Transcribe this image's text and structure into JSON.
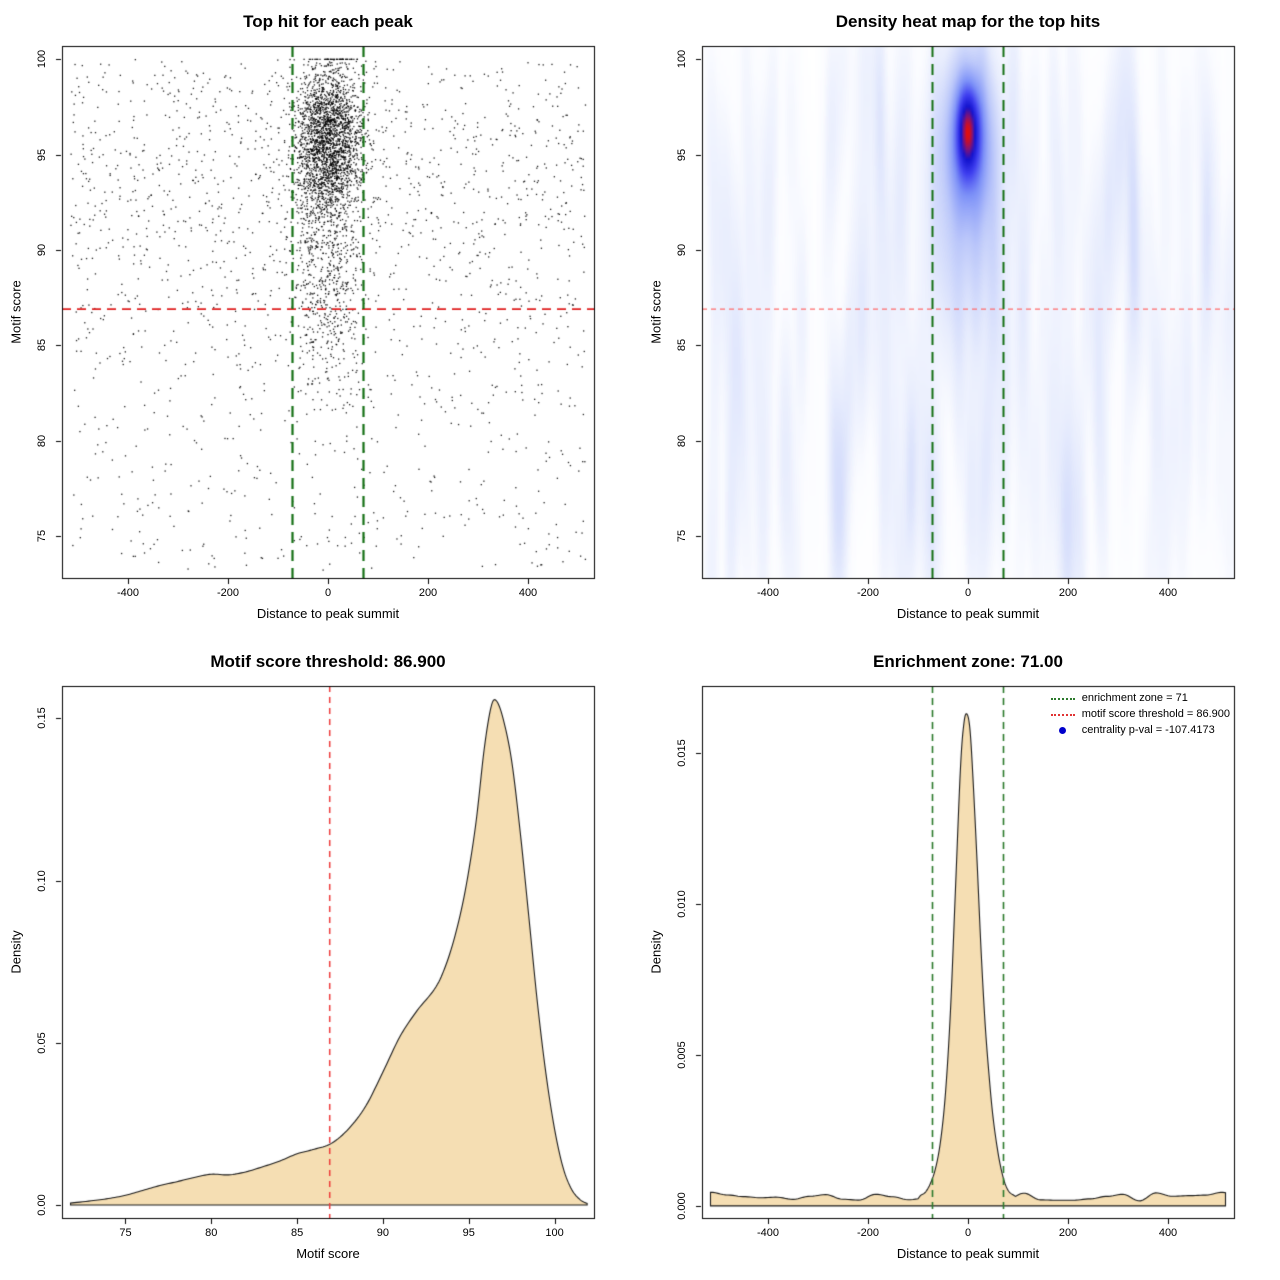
{
  "stats": {
    "motif_score_threshold": 86.9,
    "enrichment_zone": 71,
    "centrality_p_val": -107.4173
  },
  "chart_data": [
    {
      "type": "scatter",
      "title": "Top hit for each peak",
      "xlabel": "Distance to peak summit",
      "ylabel": "Motif score",
      "xlim": [
        -532,
        532
      ],
      "ylim": [
        72.8,
        100.7
      ],
      "xticks": [
        -400,
        -200,
        0,
        200,
        400
      ],
      "xtick_labels": [
        "-400",
        "-200",
        "0",
        "200",
        "400"
      ],
      "yticks": [
        75,
        80,
        85,
        90,
        95,
        100
      ],
      "ytick_labels": [
        "75",
        "80",
        "85",
        "90",
        "95",
        "100"
      ],
      "point_color": "#000000",
      "point_size": 1.3,
      "seed": 12345,
      "clusters": [
        {
          "n": 2400,
          "x": {
            "dist": "normal",
            "mean": 0,
            "sd": 34,
            "min": -140,
            "max": 140
          },
          "y": {
            "dist": "normal",
            "mean": 95.7,
            "sd": 2.1,
            "min": 86,
            "max": 100,
            "clampMax": true
          }
        },
        {
          "n": 550,
          "x": {
            "dist": "normal",
            "mean": 0,
            "sd": 34,
            "min": -150,
            "max": 150
          },
          "y": {
            "dist": "normal",
            "mean": 88.5,
            "sd": 3.0,
            "min": 74.5,
            "max": 94
          }
        },
        {
          "n": 950,
          "x": {
            "dist": "uniform",
            "min": -515,
            "max": 515
          },
          "y": {
            "dist": "uniform",
            "min": 73.2,
            "max": 100
          }
        },
        {
          "n": 750,
          "x": {
            "dist": "uniform",
            "min": -515,
            "max": 515
          },
          "y": {
            "dist": "normal",
            "mean": 93.5,
            "sd": 4.5,
            "min": 74,
            "max": 100
          }
        }
      ],
      "lines": [
        {
          "axis": "y",
          "value": 86.9,
          "color": "#e02020",
          "width": 1.8,
          "dash": [
            9,
            6
          ]
        },
        {
          "axis": "x",
          "value": -71,
          "color": "#157015",
          "width": 2.2,
          "dash": [
            11,
            7
          ]
        },
        {
          "axis": "x",
          "value": 71,
          "color": "#157015",
          "width": 2.2,
          "dash": [
            11,
            7
          ]
        }
      ]
    },
    {
      "type": "heatmap",
      "title": "Density heat map for the top hits",
      "xlabel": "Distance to peak summit",
      "ylabel": "Motif score",
      "xlim": [
        -532,
        532
      ],
      "ylim": [
        72.8,
        100.7
      ],
      "xticks": [
        -400,
        -200,
        0,
        200,
        400
      ],
      "xtick_labels": [
        "-400",
        "-200",
        "0",
        "200",
        "400"
      ],
      "yticks": [
        75,
        80,
        85,
        90,
        95,
        100
      ],
      "ytick_labels": [
        "75",
        "80",
        "85",
        "90",
        "95",
        "100"
      ],
      "heat": {
        "components": [
          {
            "amp": 1.0,
            "x0": 0,
            "sx": 14,
            "y0": 96.3,
            "sy": 1.5
          },
          {
            "amp": 0.55,
            "x0": 0,
            "sx": 30,
            "y0": 95.8,
            "sy": 2.6
          },
          {
            "amp": 0.22,
            "x0": 0,
            "sx": 55,
            "y0": 93.5,
            "sy": 5.0
          }
        ],
        "noise": {
          "seed": 99,
          "n": 300,
          "amp": 0.035,
          "sx": 9,
          "sy": 4
        },
        "gamma": 0.55,
        "stops": [
          {
            "pos": 0.0,
            "color": "#ffffff"
          },
          {
            "pos": 0.1,
            "color": "#fbfcff"
          },
          {
            "pos": 0.22,
            "color": "#e8edfd"
          },
          {
            "pos": 0.4,
            "color": "#bcc8fa"
          },
          {
            "pos": 0.58,
            "color": "#7e92f8"
          },
          {
            "pos": 0.74,
            "color": "#3e3ef0"
          },
          {
            "pos": 0.87,
            "color": "#1212cd"
          },
          {
            "pos": 0.95,
            "color": "#8b1470"
          },
          {
            "pos": 1.0,
            "color": "#e10f0f"
          }
        ]
      },
      "lines": [
        {
          "axis": "y",
          "value": 86.9,
          "color": "#ff6b6b",
          "width": 1.2,
          "dash": [
            5,
            4
          ]
        },
        {
          "axis": "x",
          "value": -71,
          "color": "#157015",
          "width": 2.0,
          "dash": [
            11,
            7
          ]
        },
        {
          "axis": "x",
          "value": 71,
          "color": "#157015",
          "width": 2.0,
          "dash": [
            11,
            7
          ]
        }
      ]
    },
    {
      "type": "area",
      "title": "Motif score threshold: 86.900",
      "xlabel": "Motif score",
      "ylabel": "Density",
      "xlim": [
        71.3,
        102.3
      ],
      "ylim": [
        -0.004,
        0.16
      ],
      "xticks": [
        75,
        80,
        85,
        90,
        95,
        100
      ],
      "xtick_labels": [
        "75",
        "80",
        "85",
        "90",
        "95",
        "100"
      ],
      "yticks": [
        0,
        0.05,
        0.1,
        0.15
      ],
      "ytick_labels": [
        "0.00",
        "0.05",
        "0.10",
        "0.15"
      ],
      "fill": "#f5deb3",
      "stroke": "#1a1a1a",
      "curve": [
        [
          71.8,
          0.0006
        ],
        [
          73,
          0.0013
        ],
        [
          74,
          0.002
        ],
        [
          75,
          0.003
        ],
        [
          76,
          0.0045
        ],
        [
          77,
          0.006
        ],
        [
          78,
          0.0072
        ],
        [
          79,
          0.0085
        ],
        [
          80,
          0.0095
        ],
        [
          81,
          0.0093
        ],
        [
          82,
          0.0102
        ],
        [
          83,
          0.0118
        ],
        [
          84,
          0.0136
        ],
        [
          85,
          0.0158
        ],
        [
          86,
          0.0172
        ],
        [
          87,
          0.019
        ],
        [
          88,
          0.0235
        ],
        [
          89,
          0.0305
        ],
        [
          90,
          0.041
        ],
        [
          91,
          0.052
        ],
        [
          92,
          0.06
        ],
        [
          93,
          0.0665
        ],
        [
          93.6,
          0.073
        ],
        [
          94.2,
          0.083
        ],
        [
          94.8,
          0.097
        ],
        [
          95.4,
          0.117
        ],
        [
          95.9,
          0.1405
        ],
        [
          96.3,
          0.1535
        ],
        [
          96.6,
          0.1555
        ],
        [
          97,
          0.15
        ],
        [
          97.5,
          0.137
        ],
        [
          98,
          0.115
        ],
        [
          98.5,
          0.089
        ],
        [
          99,
          0.0625
        ],
        [
          99.5,
          0.0405
        ],
        [
          100,
          0.0235
        ],
        [
          100.5,
          0.0115
        ],
        [
          101,
          0.0048
        ],
        [
          101.5,
          0.0016
        ],
        [
          101.9,
          0.0005
        ]
      ],
      "lines": [
        {
          "axis": "x",
          "value": 86.9,
          "color": "#ee3b3b",
          "width": 1.5,
          "dash": [
            6,
            5
          ]
        }
      ]
    },
    {
      "type": "area",
      "title": "Enrichment zone: 71.00",
      "xlabel": "Distance to peak summit",
      "ylabel": "Density",
      "xlim": [
        -532,
        532
      ],
      "ylim": [
        -0.0004,
        0.0172
      ],
      "xticks": [
        -400,
        -200,
        0,
        200,
        400
      ],
      "xtick_labels": [
        "-400",
        "-200",
        "0",
        "200",
        "400"
      ],
      "yticks": [
        0,
        0.005,
        0.01,
        0.015
      ],
      "ytick_labels": [
        "0.000",
        "0.005",
        "0.010",
        "0.015"
      ],
      "fill": "#f5deb3",
      "stroke": "#1a1a1a",
      "curve": [
        [
          -95,
          0.0001
        ],
        [
          -85,
          0.0002
        ],
        [
          -75,
          0.0005
        ],
        [
          -65,
          0.001
        ],
        [
          -55,
          0.0019
        ],
        [
          -45,
          0.0035
        ],
        [
          -35,
          0.0062
        ],
        [
          -25,
          0.0102
        ],
        [
          -15,
          0.0142
        ],
        [
          -8,
          0.0157
        ],
        [
          -2,
          0.016
        ],
        [
          4,
          0.0155
        ],
        [
          10,
          0.0139
        ],
        [
          18,
          0.0112
        ],
        [
          26,
          0.0082
        ],
        [
          34,
          0.0057
        ],
        [
          42,
          0.0039
        ],
        [
          50,
          0.0025
        ],
        [
          60,
          0.0014
        ],
        [
          70,
          0.0007
        ],
        [
          80,
          0.0003
        ],
        [
          90,
          0.0001
        ]
      ],
      "curve_noise": {
        "seed": 7,
        "base": 0.0003,
        "amp": 0.00016,
        "node_step": 33,
        "from": -515,
        "to": 515
      },
      "lines": [
        {
          "axis": "x",
          "value": -71,
          "color": "#2c7a2c",
          "width": 1.6,
          "dash": [
            7,
            5
          ]
        },
        {
          "axis": "x",
          "value": 71,
          "color": "#2c7a2c",
          "width": 1.6,
          "dash": [
            7,
            5
          ]
        }
      ],
      "legend": [
        {
          "label": "enrichment zone = 71",
          "symbol": "dotted-line",
          "color": "#2c7a2c"
        },
        {
          "label": "motif score threshold = 86.900",
          "symbol": "dotted-line",
          "color": "#e03333"
        },
        {
          "label": "centrality p-val = -107.4173",
          "symbol": "point",
          "color": "#0000cc"
        }
      ]
    }
  ]
}
